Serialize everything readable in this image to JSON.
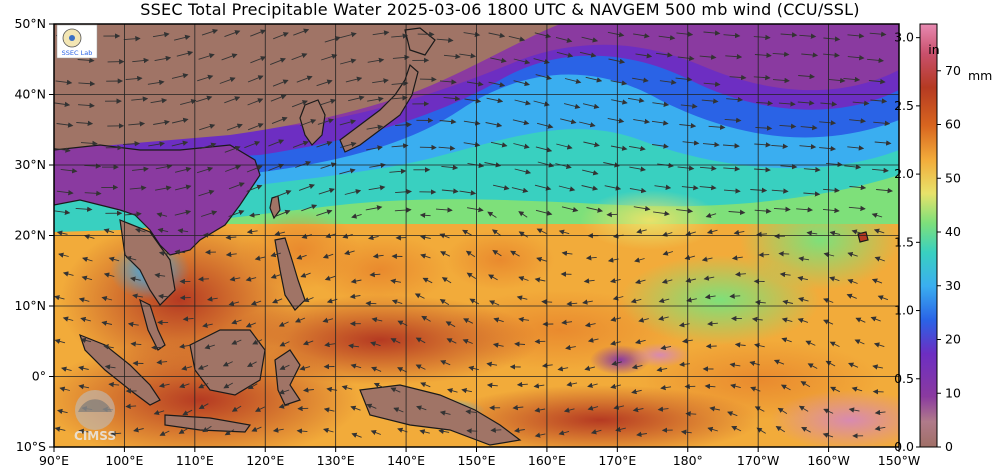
{
  "title": "SSEC Total Precipitable Water  2025-03-06 1800 UTC & NAVGEM 500 mb wind (CCU/SSL)",
  "map": {
    "lon_range": [
      90,
      210
    ],
    "lat_range": [
      -10,
      50
    ],
    "lat_ticks": [
      "50°N",
      "40°N",
      "30°N",
      "20°N",
      "10°N",
      "0°",
      "10°S"
    ],
    "lon_ticks": [
      "90°E",
      "100°E",
      "110°E",
      "120°E",
      "130°E",
      "140°E",
      "150°E",
      "160°E",
      "170°E",
      "180°",
      "170°W",
      "160°W",
      "150°W"
    ]
  },
  "colorbar": {
    "in_unit": "in",
    "mm_unit": "mm",
    "in_labels": [
      "3.0",
      "2.5",
      "2.0",
      "1.5",
      "1.0",
      "0.5",
      "0.0"
    ],
    "mm_labels": [
      "70",
      "60",
      "50",
      "40",
      "30",
      "20",
      "10",
      "0"
    ],
    "colors": [
      "#a06f66",
      "#8a3aa0",
      "#6d2ec2",
      "#2a63e6",
      "#3aaef0",
      "#39d0c0",
      "#7ee07a",
      "#e8e26a",
      "#f2ab3a",
      "#d8651f",
      "#b53a22",
      "#c9506c",
      "#e88ab2"
    ]
  },
  "logos": {
    "cimss": "CIMSS",
    "ssec_lab": "SSEC Lab"
  },
  "colors": {
    "land": "#a07466",
    "coast": "#1a1a1a",
    "grid": "#222222",
    "arrows": "#333333"
  }
}
